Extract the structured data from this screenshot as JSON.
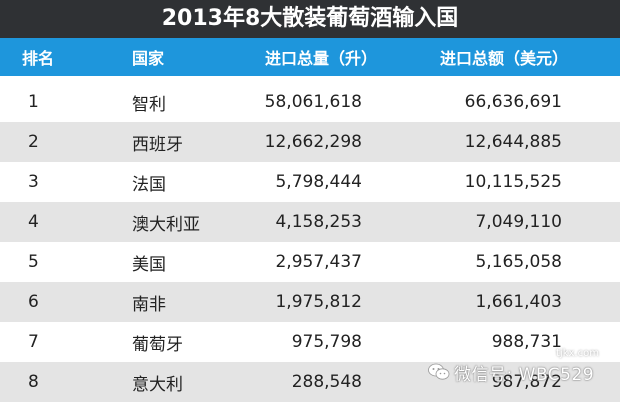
{
  "title": "2013年8大散装葡萄酒输入国",
  "header": {
    "rank": "排名",
    "country": "国家",
    "volume": "进口总量（升）",
    "value": "进口总额（美元）"
  },
  "rows": [
    {
      "rank": "1",
      "country": "智利",
      "volume": "58,061,618",
      "value": "66,636,691"
    },
    {
      "rank": "2",
      "country": "西班牙",
      "volume": "12,662,298",
      "value": "12,644,885"
    },
    {
      "rank": "3",
      "country": "法国",
      "volume": "5,798,444",
      "value": "10,115,525"
    },
    {
      "rank": "4",
      "country": "澳大利亚",
      "volume": "4,158,253",
      "value": "7,049,110"
    },
    {
      "rank": "5",
      "country": "美国",
      "volume": "2,957,437",
      "value": "5,165,058"
    },
    {
      "rank": "6",
      "country": "南非",
      "volume": "1,975,812",
      "value": "1,661,403"
    },
    {
      "rank": "7",
      "country": "葡萄牙",
      "volume": "975,798",
      "value": "988,731"
    },
    {
      "rank": "8",
      "country": "意大利",
      "volume": "288,548",
      "value": "987,872"
    }
  ],
  "watermark": {
    "text": "微信号: WBC529",
    "site": "tjkx.com"
  }
}
